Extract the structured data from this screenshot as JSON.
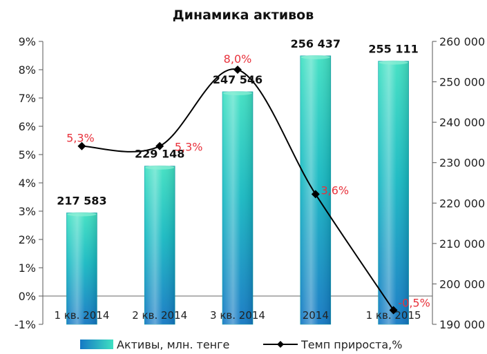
{
  "chart_data": {
    "type": "bar",
    "title": "Динамика активов",
    "categories": [
      "1 кв. 2014",
      "2 кв. 2014",
      "3 кв. 2014",
      "2014",
      "1 кв. 2015"
    ],
    "series": [
      {
        "name": "Активы, млн. тенге",
        "type": "bar",
        "axis": "right",
        "values": [
          217583,
          229148,
          247546,
          256437,
          255111
        ],
        "labels": [
          "217 583",
          "229 148",
          "247 546",
          "256 437",
          "255 111"
        ],
        "color": "#1ec8c0"
      },
      {
        "name": "Темп прироста,%",
        "type": "line",
        "axis": "left",
        "values": [
          5.3,
          5.3,
          8.0,
          3.6,
          -0.5
        ],
        "labels": [
          "5,3%",
          "5,3%",
          "8,0%",
          "3,6%",
          "-0,5%"
        ],
        "color": "#000000",
        "label_color": "#e8323c"
      }
    ],
    "y_left": {
      "min": -1,
      "max": 9,
      "ticks": [
        "-1%",
        "0%",
        "1%",
        "2%",
        "3%",
        "4%",
        "5%",
        "6%",
        "7%",
        "8%",
        "9%"
      ]
    },
    "y_right": {
      "min": 190000,
      "max": 260000,
      "ticks": [
        "190 000",
        "200 000",
        "210 000",
        "220 000",
        "230 000",
        "240 000",
        "250 000",
        "260 000"
      ]
    },
    "legend_position": "bottom",
    "grid": false
  }
}
